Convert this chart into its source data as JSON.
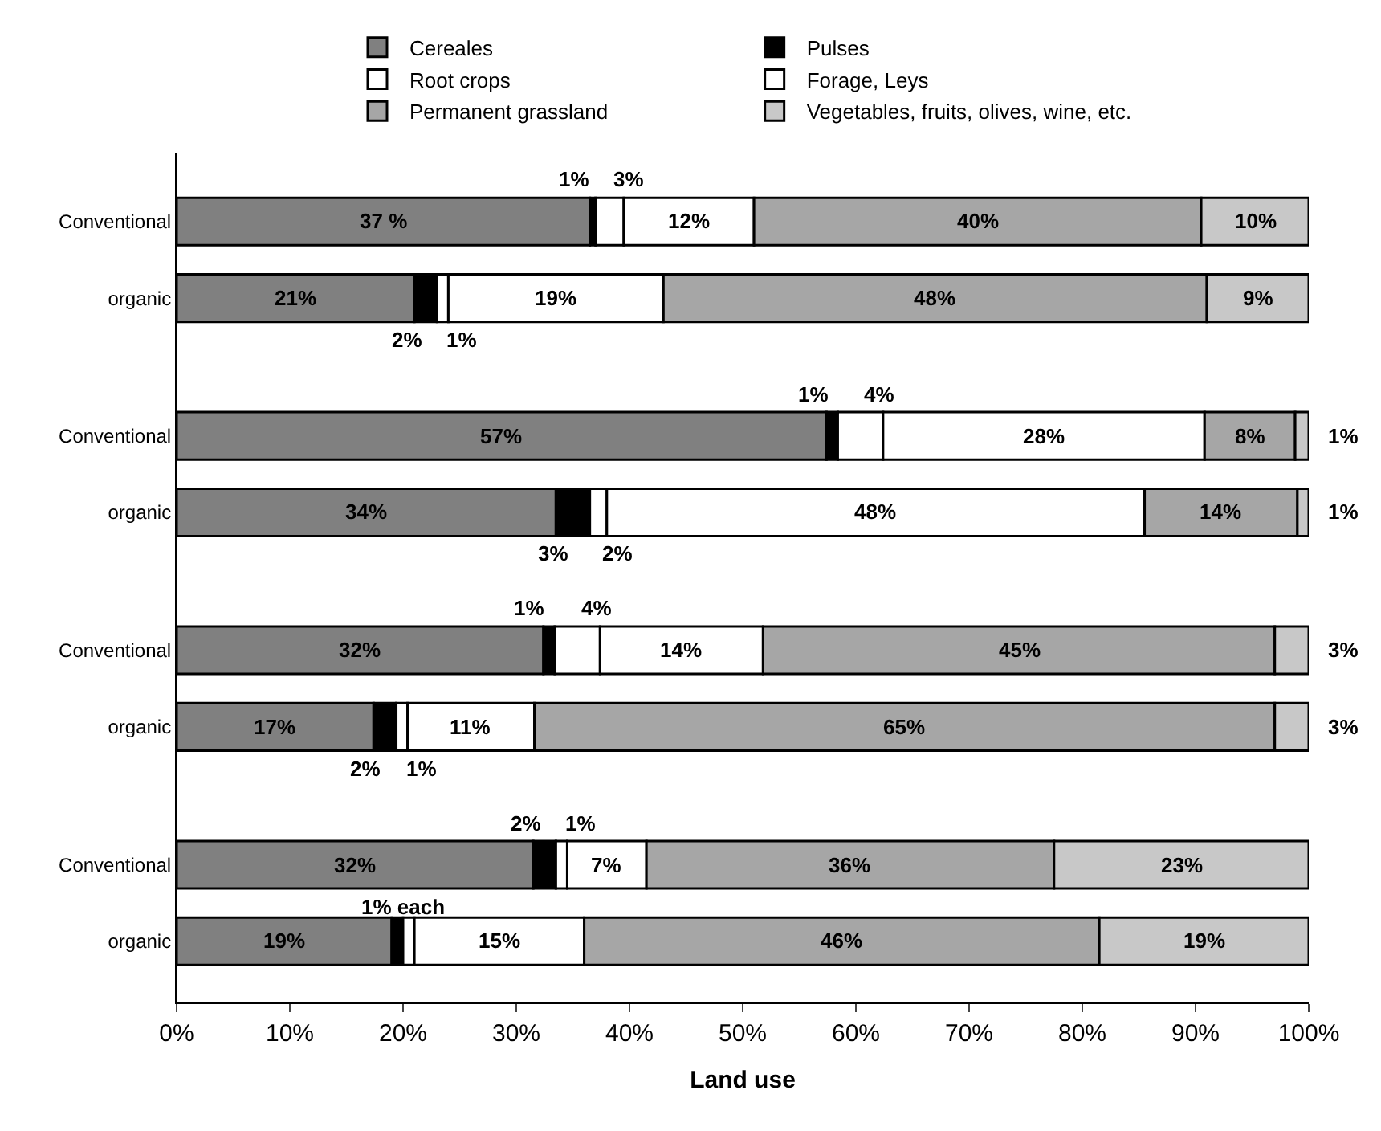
{
  "chart_data": {
    "type": "bar",
    "orientation": "horizontal",
    "stacked": true,
    "xlabel": "Land use",
    "categories": [
      "Conventional",
      "organic",
      "Conventional",
      "organic",
      "Conventional",
      "organic",
      "Conventional",
      "organic"
    ],
    "series": [
      {
        "name": "Cereales",
        "color": "#808080",
        "values": [
          36.5,
          21,
          57.4,
          33.5,
          32.4,
          17.4,
          31.5,
          19
        ],
        "value_labels": [
          "37 %",
          "21%",
          "57%",
          "34%",
          "32%",
          "17%",
          "32%",
          "19%"
        ]
      },
      {
        "name": "Pulses",
        "color": "#000000",
        "values": [
          0.5,
          2,
          1,
          3,
          1,
          2,
          2,
          1
        ],
        "value_labels": [
          "1%",
          "2%",
          "1%",
          "3%",
          "1%",
          "2%",
          "2%",
          null
        ]
      },
      {
        "name": "Root crops",
        "color": "#ffffff",
        "values": [
          2.5,
          1,
          4,
          1.5,
          4,
          1,
          1,
          1
        ],
        "value_labels": [
          "3%",
          "1%",
          "4%",
          "2%",
          "4%",
          "1%",
          "1%",
          null
        ]
      },
      {
        "name": "Forage, Leys",
        "color": "#ffffff",
        "values": [
          11.5,
          19,
          28.4,
          47.5,
          14.4,
          11.2,
          7,
          15
        ],
        "value_labels": [
          "12%",
          "19%",
          "28%",
          "48%",
          "14%",
          "11%",
          "7%",
          "15%"
        ]
      },
      {
        "name": "Permanent grassland",
        "color": "#a6a6a6",
        "values": [
          39.5,
          48,
          8,
          13.5,
          45.2,
          65.4,
          36,
          45.5
        ],
        "value_labels": [
          "40%",
          "48%",
          "8%",
          "14%",
          "45%",
          "65%",
          "36%",
          "46%"
        ]
      },
      {
        "name": "Vegetables, fruits, olives, wine, etc.",
        "color": "#c8c8c8",
        "values": [
          9.5,
          9,
          1.2,
          1,
          3,
          3,
          22.5,
          18.5
        ],
        "value_labels": [
          "10%",
          "9%",
          "1%",
          "1%",
          "3%",
          "3%",
          "23%",
          "19%"
        ]
      }
    ],
    "annotations": [
      "1% each"
    ],
    "xlim": [
      0,
      100
    ],
    "xticks": [
      {
        "value": 0,
        "label": "0%"
      },
      {
        "value": 10,
        "label": "10%"
      },
      {
        "value": 20,
        "label": "20%"
      },
      {
        "value": 30,
        "label": "30%"
      },
      {
        "value": 40,
        "label": "40%"
      },
      {
        "value": 50,
        "label": "50%"
      },
      {
        "value": 60,
        "label": "60%"
      },
      {
        "value": 70,
        "label": "70%"
      },
      {
        "value": 80,
        "label": "80%"
      },
      {
        "value": 90,
        "label": "90%"
      },
      {
        "value": 100,
        "label": "100%"
      }
    ],
    "legend": "top"
  }
}
